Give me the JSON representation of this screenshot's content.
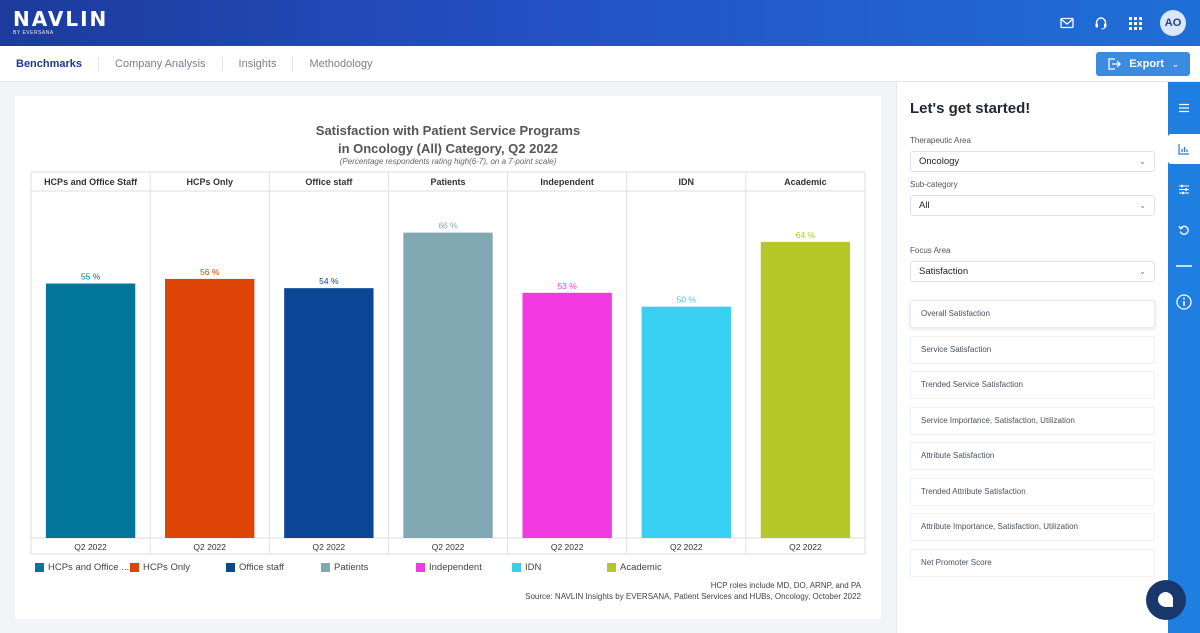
{
  "header": {
    "logo_main": "NAVLIN",
    "logo_sub": "BY EVERSANA",
    "avatar_initials": "AO",
    "icons": [
      "mail-icon",
      "headset-icon",
      "apps-grid-icon"
    ]
  },
  "nav": {
    "tabs": [
      {
        "label": "Benchmarks",
        "active": true
      },
      {
        "label": "Company Analysis",
        "active": false
      },
      {
        "label": "Insights",
        "active": false
      },
      {
        "label": "Methodology",
        "active": false
      }
    ],
    "export_label": "Export"
  },
  "chart_data": {
    "type": "bar",
    "title_line1": "Satisfaction with Patient Service Programs",
    "title_line2": "in Oncology (All) Category, Q2 2022",
    "subtitle": "(Percentage respondents rating high(6-7), on a 7-point scale)",
    "categories": [
      "HCPs and Office Staff",
      "HCPs Only",
      "Office staff",
      "Patients",
      "Independent",
      "IDN",
      "Academic"
    ],
    "x_label": "Q2 2022",
    "values": [
      55,
      56,
      54,
      66,
      53,
      50,
      64
    ],
    "value_suffix": " %",
    "colors": [
      "#01759a",
      "#dd4406",
      "#0b4596",
      "#80a8b2",
      "#f13ae2",
      "#39cff3",
      "#b5c829"
    ],
    "legend": [
      "HCPs and Office ...",
      "HCPs Only",
      "Office staff",
      "Patients",
      "Independent",
      "IDN",
      "Academic"
    ],
    "ylim": [
      0,
      75
    ],
    "grid": false,
    "legend_position": "bottom",
    "footnote_line1": "HCP roles include MD, DO, ARNP, and PA",
    "footnote_line2": "Source: NAVLIN Insights by EVERSANA, Patient Services and HUBs, Oncology, October 2022"
  },
  "panel": {
    "title": "Let's get started!",
    "therapeutic_area_label": "Therapeutic Area",
    "therapeutic_area_value": "Oncology",
    "subcategory_label": "Sub-category",
    "subcategory_value": "All",
    "focus_area_label": "Focus Area",
    "focus_area_value": "Satisfaction",
    "menu": [
      "Overall Satisfaction",
      "Service Satisfaction",
      "Trended Service Satisfaction",
      "Service Importance, Satisfaction, Utilization",
      "Attribute Satisfaction",
      "Trended Attribute Satisfaction",
      "Attribute Importance, Satisfaction, Utilization",
      "Net Promoter Score"
    ]
  },
  "rail": {
    "icons": [
      "menu-icon",
      "bar-chart-icon",
      "sliders-icon",
      "refresh-icon",
      "minus-icon",
      "info-icon"
    ],
    "active_index": 1
  }
}
